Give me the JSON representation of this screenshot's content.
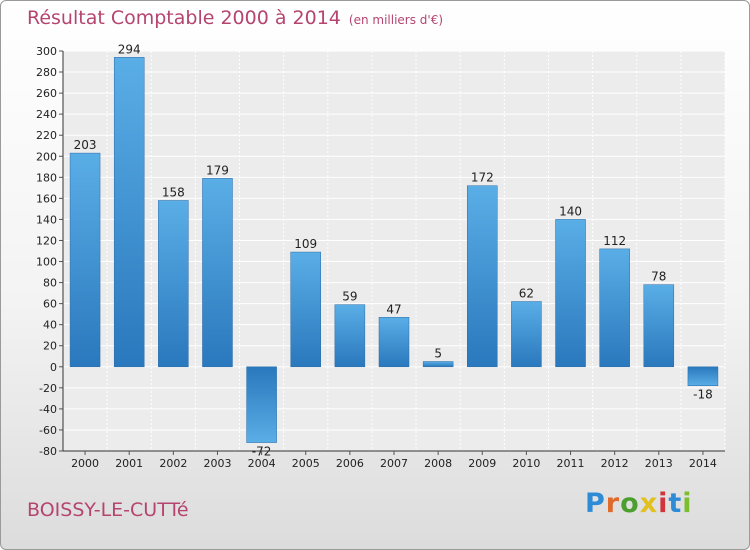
{
  "header": {
    "title": "Résultat Comptable 2000 à 2014",
    "unit": "(en milliers d'€)"
  },
  "footer": {
    "commune": "BOISSY-LE-CUTTé",
    "logo_letters": [
      "P",
      "r",
      "o",
      "x",
      "i",
      "t",
      "i"
    ],
    "logo_colors": [
      "#2e8bd6",
      "#e06a2c",
      "#4a9f2f",
      "#e2c11e",
      "#d2343c",
      "#2e8bd6",
      "#7cbf2e"
    ]
  },
  "chart_data": {
    "type": "bar",
    "categories": [
      "2000",
      "2001",
      "2002",
      "2003",
      "2004",
      "2005",
      "2006",
      "2007",
      "2008",
      "2009",
      "2010",
      "2011",
      "2012",
      "2013",
      "2014"
    ],
    "values": [
      203,
      294,
      158,
      179,
      -72,
      109,
      59,
      47,
      5,
      172,
      62,
      140,
      112,
      78,
      -18
    ],
    "ylim": [
      -80,
      300
    ],
    "ytick_step": 20,
    "grid": true,
    "bar_color_light": "#5aaee6",
    "bar_color_dark": "#2a78bd"
  }
}
